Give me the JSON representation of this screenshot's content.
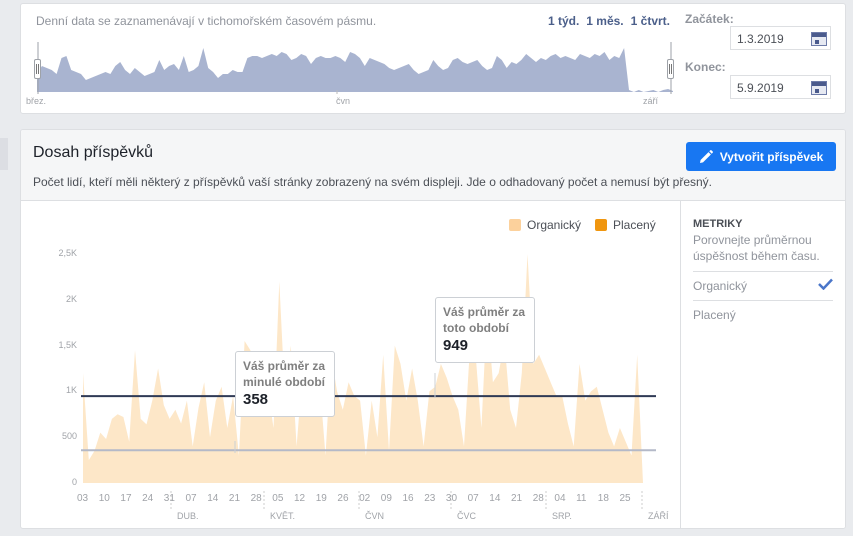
{
  "range_selector": {
    "note": "Denní data se zaznamenávají v tichomořském časovém pásmu.",
    "presets": [
      "1 týd.",
      "1 měs.",
      "1 čtvrt."
    ],
    "mini_axis_labels": [
      "břez.",
      "čvn",
      "září"
    ],
    "start_label": "Začátek:",
    "start_value": "1.3.2019",
    "end_label": "Konec:",
    "end_value": "5.9.2019"
  },
  "card": {
    "title": "Dosah příspěvků",
    "description": "Počet lidí, kteří měli některý z příspěvků vaší stránky zobrazený na svém displeji. Jde o odhadovaný počet a nemusí být přesný.",
    "create_button": "Vytvořit příspěvek"
  },
  "legend": {
    "organic": "Organický",
    "paid": "Placený"
  },
  "metrics": {
    "title": "METRIKY",
    "description": "Porovnejte průměrnou úspěšnost během času.",
    "items": [
      {
        "label": "Organický",
        "checked": true
      },
      {
        "label": "Placený",
        "checked": false
      }
    ]
  },
  "tooltips": {
    "previous": {
      "label": "Váš průměr za minulé období",
      "value": "358"
    },
    "current": {
      "label": "Váš průměr za toto období",
      "value": "949"
    }
  },
  "colors": {
    "organic": "#fde7c8",
    "paid": "#f0960f",
    "accent": "#1877f2",
    "avg_current": "#2f3a55",
    "avg_previous": "#b4b9c8",
    "mini_area": "#a9b4d0"
  },
  "chart_data": {
    "type": "area",
    "title": "Dosah příspěvků",
    "xlabel": "",
    "ylabel": "",
    "ylim": [
      0,
      2500
    ],
    "yticks": [
      "0",
      "500",
      "1K",
      "1,5K",
      "2K",
      "2,5K"
    ],
    "x_tick_labels": [
      "03",
      "10",
      "17",
      "24",
      "31",
      "07",
      "14",
      "21",
      "28",
      "05",
      "12",
      "19",
      "26",
      "02",
      "09",
      "16",
      "23",
      "30",
      "07",
      "14",
      "21",
      "28",
      "04",
      "11",
      "18",
      "25"
    ],
    "month_labels": [
      "DUB.",
      "KVĚT.",
      "ČVN",
      "ČVC",
      "SRP.",
      "ZÁŘÍ"
    ],
    "legend": [
      "Organický",
      "Placený"
    ],
    "grid": false,
    "series": [
      {
        "name": "Organický",
        "values": [
          1200,
          250,
          350,
          550,
          480,
          700,
          750,
          720,
          450,
          1450,
          700,
          640,
          900,
          1250,
          850,
          700,
          800,
          650,
          900,
          400,
          820,
          1100,
          500,
          900,
          1050,
          600,
          950,
          300,
          1550,
          1450,
          800,
          1400,
          1050,
          600,
          2200,
          900,
          1500,
          400,
          1200,
          800,
          1300,
          1100,
          300,
          1400,
          1000,
          800,
          1100,
          950,
          900,
          300,
          900,
          500,
          1400,
          350,
          1500,
          1300,
          900,
          1250,
          900,
          400,
          1000,
          1050,
          1300,
          1150,
          950,
          800,
          400,
          1450,
          1400,
          600,
          1900,
          1100,
          1200,
          1550,
          800,
          600,
          1200,
          2500,
          1300,
          1400,
          1250,
          1100,
          950,
          950,
          650,
          400,
          1300,
          900,
          1000,
          1050,
          800,
          550,
          400,
          600,
          450,
          300,
          1400,
          0
        ]
      },
      {
        "name": "Placený",
        "values": []
      }
    ],
    "reference_lines": [
      {
        "name": "Váš průměr za toto období",
        "value": 949
      },
      {
        "name": "Váš průměr za minulé období",
        "value": 358
      }
    ]
  }
}
